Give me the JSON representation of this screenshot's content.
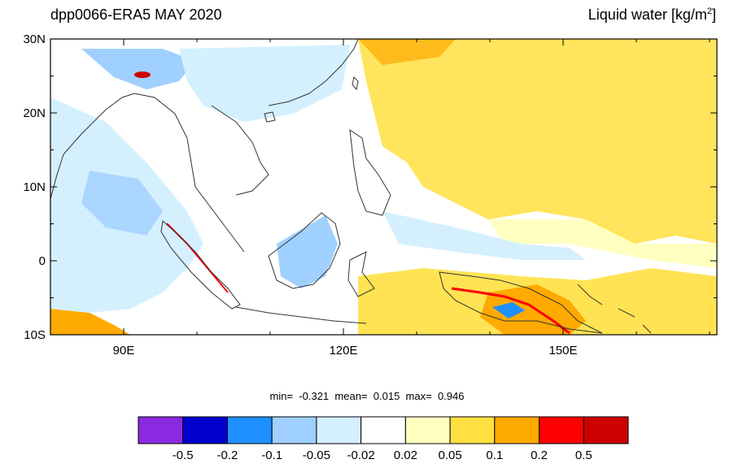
{
  "title_left": "dpp0066-ERA5 MAY 2020",
  "title_right": "Liquid water  [kg/m",
  "title_right_sup": "2",
  "title_right_end": "]",
  "axes": {
    "lon_min": 80,
    "lon_max": 171,
    "lat_min": -10,
    "lat_max": 30,
    "lat_ticks": [
      {
        "v": 30,
        "label": "30N"
      },
      {
        "v": 20,
        "label": "20N"
      },
      {
        "v": 10,
        "label": "10N"
      },
      {
        "v": 0,
        "label": "0"
      },
      {
        "v": -10,
        "label": "10S"
      }
    ],
    "lon_ticks": [
      {
        "v": 90,
        "label": "90E"
      },
      {
        "v": 120,
        "label": "120E"
      },
      {
        "v": 150,
        "label": "150E"
      }
    ]
  },
  "stats": {
    "min_label": "min=",
    "min": "-0.321",
    "mean_label": "mean=",
    "mean": "0.015",
    "max_label": "max=",
    "max": "0.946"
  },
  "colorbar": {
    "colors": [
      "#8a2be2",
      "#0000cd",
      "#1e90ff",
      "#a0d0ff",
      "#d4f0ff",
      "#ffffff",
      "#ffffc0",
      "#ffe040",
      "#ffaa00",
      "#ff0000",
      "#cc0000"
    ],
    "labels": [
      "-0.5",
      "-0.2",
      "-0.1",
      "-0.05",
      "-0.02",
      "0.02",
      "0.05",
      "0.1",
      "0.2",
      "0.5"
    ]
  },
  "color_roles": {
    "positive_field": "#ffe040",
    "strong_positive": "#ffaa00",
    "negative_field": "#d4f0ff",
    "coast": "#333333"
  }
}
